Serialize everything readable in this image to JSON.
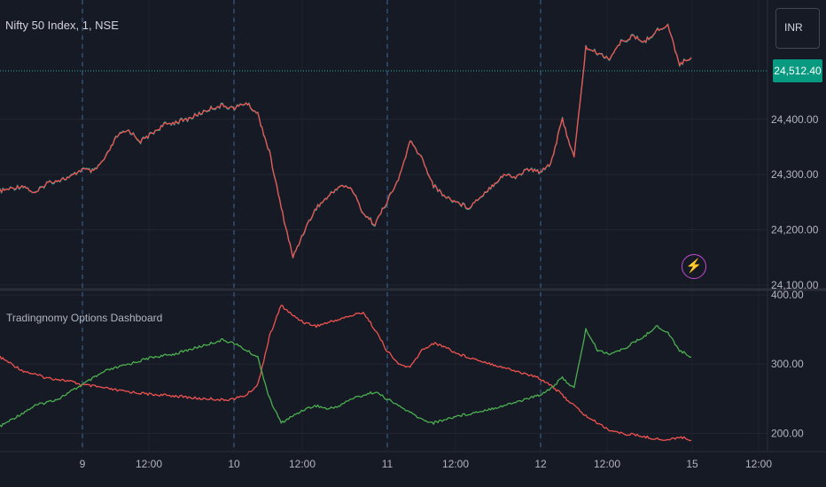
{
  "chart_data": [
    {
      "type": "line",
      "title": "Nifty 50 Index, 1, NSE",
      "currency": "INR",
      "last_price_label": "24,512.40",
      "last_price": 24512.4,
      "ylim": [
        24095,
        24600
      ],
      "y_ticks": [
        "24,100.00",
        "24,200.00",
        "24,300.00",
        "24,400.00"
      ],
      "y_tick_values": [
        24100,
        24200,
        24300,
        24400
      ],
      "grid": true,
      "x_ticks": [
        "9",
        "12:00",
        "10",
        "12:00",
        "11",
        "12:00",
        "12",
        "12:00",
        "15",
        "12:00"
      ],
      "session_breaks": [
        "9",
        "10",
        "11",
        "12"
      ],
      "series": [
        {
          "color": "#ef5350",
          "alt_color": "#26a69a",
          "values": [
            24270,
            24275,
            24280,
            24265,
            24285,
            24290,
            24295,
            24310,
            24305,
            24330,
            24370,
            24380,
            24360,
            24375,
            24390,
            24395,
            24400,
            24410,
            24420,
            24425,
            24420,
            24430,
            24410,
            24340,
            24240,
            24150,
            24200,
            24240,
            24260,
            24280,
            24275,
            24230,
            24210,
            24250,
            24290,
            24360,
            24330,
            24280,
            24260,
            24250,
            24240,
            24260,
            24280,
            24300,
            24295,
            24310,
            24305,
            24320,
            24400,
            24330,
            24530,
            24520,
            24510,
            24540,
            24550,
            24540,
            24560,
            24570,
            24500,
            24512
          ]
        }
      ]
    },
    {
      "type": "line",
      "title": "Tradingnomy Options Dashboard",
      "ylim": [
        180,
        400
      ],
      "y_ticks": [
        "200.00",
        "300.00",
        "400.00"
      ],
      "y_tick_values": [
        200,
        300,
        400
      ],
      "grid": true,
      "series": [
        {
          "color": "#ef5350",
          "values": [
            310,
            300,
            290,
            285,
            280,
            278,
            275,
            270,
            268,
            265,
            262,
            260,
            258,
            256,
            255,
            254,
            252,
            250,
            250,
            248,
            250,
            255,
            270,
            340,
            385,
            370,
            360,
            355,
            360,
            365,
            370,
            375,
            350,
            320,
            300,
            295,
            320,
            330,
            325,
            315,
            310,
            305,
            300,
            295,
            290,
            285,
            280,
            270,
            255,
            240,
            225,
            215,
            205,
            200,
            198,
            195,
            192,
            190,
            195,
            190
          ]
        },
        {
          "color": "#4caf50",
          "values": [
            210,
            220,
            230,
            240,
            245,
            250,
            260,
            270,
            280,
            290,
            295,
            300,
            305,
            310,
            312,
            315,
            320,
            325,
            330,
            335,
            330,
            320,
            310,
            250,
            215,
            225,
            235,
            240,
            235,
            240,
            250,
            255,
            260,
            250,
            240,
            230,
            220,
            215,
            220,
            225,
            228,
            232,
            236,
            240,
            245,
            250,
            255,
            265,
            280,
            265,
            350,
            320,
            315,
            320,
            330,
            340,
            355,
            345,
            320,
            310
          ]
        }
      ]
    }
  ]
}
